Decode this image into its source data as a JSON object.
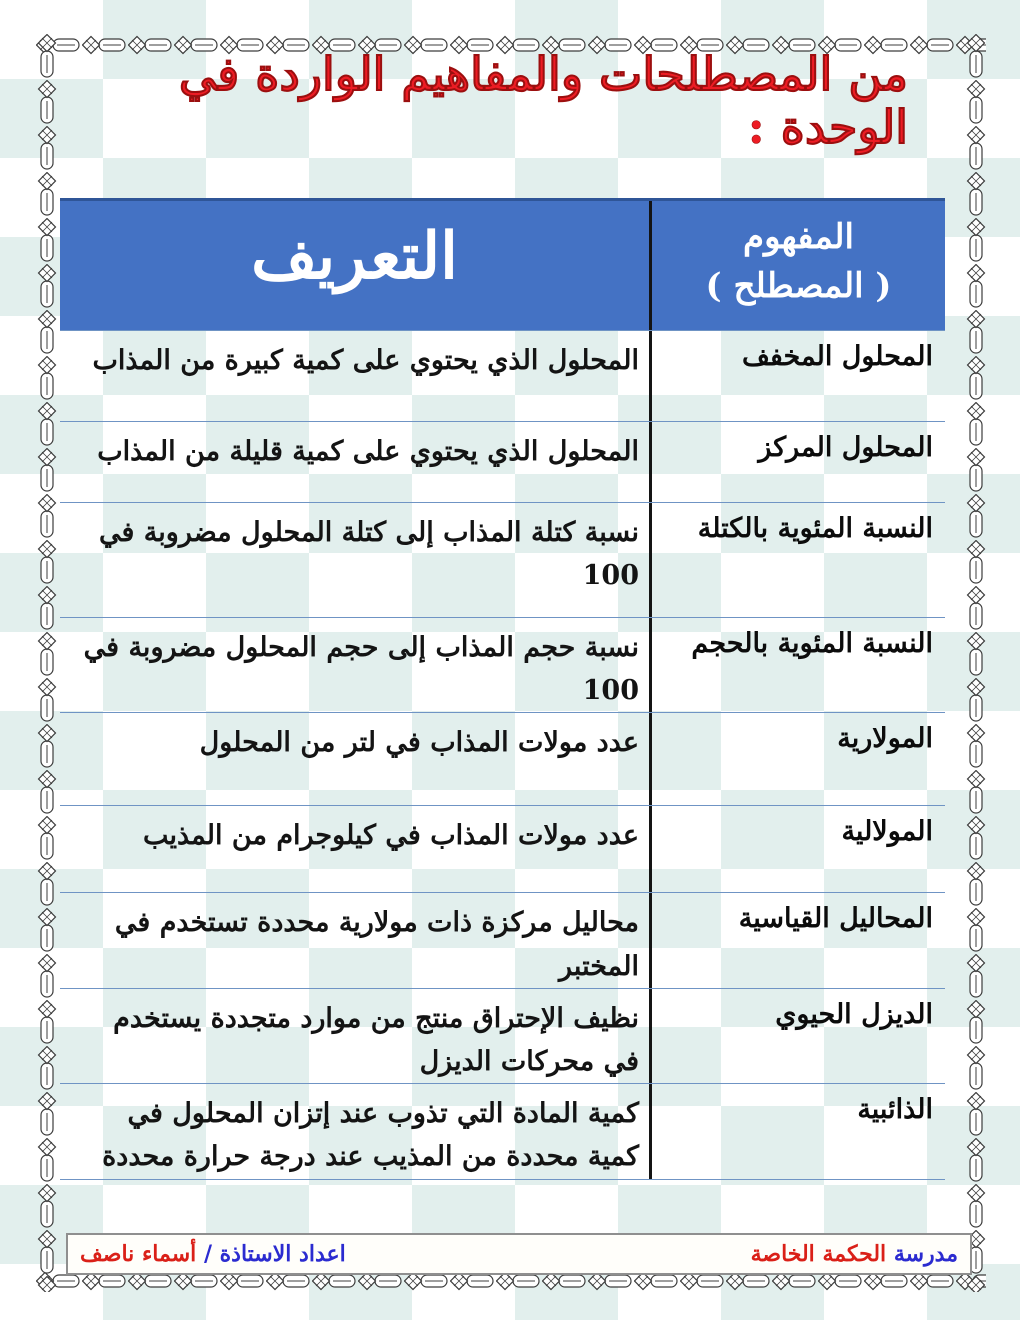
{
  "page": {
    "title": "من المصطلحات والمفاهيم  الواردة في الوحدة :"
  },
  "table": {
    "header": {
      "definition": "التعريف",
      "concept_line1": "المفهوم",
      "concept_line2": "( المصطلح )"
    },
    "rows": [
      {
        "term": "المحلول المخفف",
        "definition": "المحلول الذي يحتوي على كمية كبيرة من المذاب"
      },
      {
        "term": "المحلول المركز",
        "definition": "المحلول الذي يحتوي على كمية قليلة من المذاب"
      },
      {
        "term": "النسبة المئوية بالكتلة",
        "definition": "نسبة كتلة المذاب إلى كتلة المحلول مضروبة في 100"
      },
      {
        "term": "النسبة المئوية بالحجم",
        "definition": "نسبة حجم المذاب إلى حجم المحلول مضروبة في 100"
      },
      {
        "term": "المولارية",
        "definition": "عدد مولات المذاب في لتر من المحلول"
      },
      {
        "term": "المولالية",
        "definition": "عدد مولات المذاب في كيلوجرام من المذيب"
      },
      {
        "term": "المحاليل القياسية",
        "definition": "محاليل مركزة ذات مولارية محددة تستخدم في المختبر"
      },
      {
        "term": "الديزل الحيوي",
        "definition": "نظيف الإحتراق منتج من موارد متجددة يستخدم في محركات الديزل"
      },
      {
        "term": "الذائبية",
        "definition": "كمية المادة التي تذوب عند إتزان المحلول في كمية محددة من المذيب عند درجة حرارة محددة"
      }
    ]
  },
  "footer": {
    "school_blue": "مدرسة",
    "school_red": "الحكمة الخاصة",
    "prepared_blue": "اعداد الاستاذة /",
    "prepared_red": "أسماء ناصف"
  },
  "colors": {
    "header_blue": "#4472c4",
    "divider": "#141414",
    "row_line": "#6f94c4",
    "title_red": "#ed1c24",
    "footer_blue": "#2b2bd0",
    "footer_red": "#da2018",
    "checker": "#e2efed",
    "chain": "#3c3c3c"
  }
}
